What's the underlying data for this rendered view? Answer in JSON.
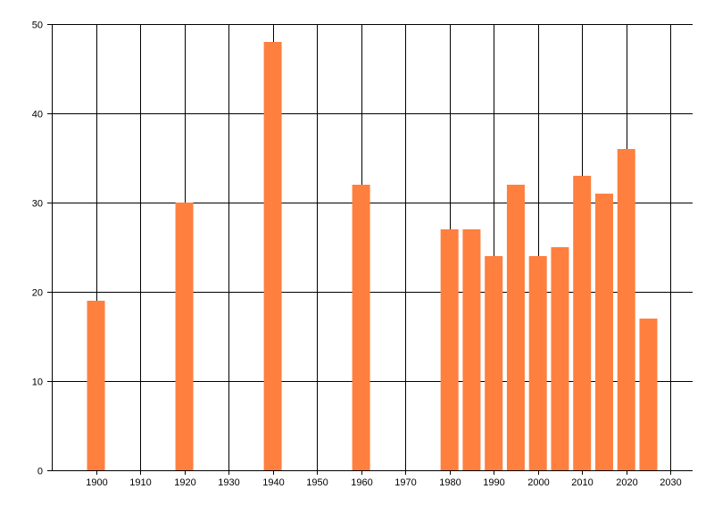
{
  "chart_data": {
    "type": "bar",
    "title": "",
    "xlabel": "",
    "ylabel": "",
    "x": [
      1900,
      1920,
      1940,
      1960,
      1980,
      1985,
      1990,
      1995,
      2000,
      2005,
      2010,
      2015,
      2020,
      2025
    ],
    "values": [
      19,
      30,
      48,
      32,
      27,
      27,
      24,
      32,
      24,
      25,
      33,
      31,
      36,
      17
    ],
    "xlim": [
      1890,
      2035
    ],
    "ylim": [
      0,
      50
    ],
    "xticks": [
      1900,
      1910,
      1920,
      1930,
      1940,
      1950,
      1960,
      1970,
      1980,
      1990,
      2000,
      2010,
      2020,
      2030
    ],
    "yticks": [
      0,
      10,
      20,
      30,
      40,
      50
    ],
    "grid": true,
    "bar_color": "#FF7F3F",
    "grid_color": "#000000"
  }
}
